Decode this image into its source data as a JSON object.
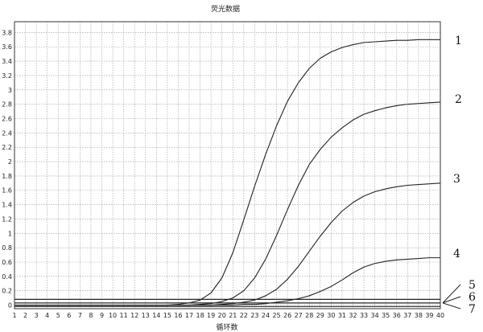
{
  "chart_data": {
    "type": "line",
    "title": "荧光数据",
    "xlabel": "循环数",
    "ylabel": "",
    "xlim": [
      1,
      40
    ],
    "ylim": [
      -0.05,
      3.95
    ],
    "x_ticks": [
      "1",
      "2",
      "3",
      "4",
      "5",
      "6",
      "7",
      "8",
      "9",
      "10",
      "11",
      "12",
      "13",
      "14",
      "15",
      "16",
      "17",
      "18",
      "19",
      "20",
      "21",
      "22",
      "23",
      "24",
      "25",
      "26",
      "27",
      "28",
      "29",
      "30",
      "31",
      "32",
      "33",
      "34",
      "35",
      "36",
      "37",
      "38",
      "39",
      "40"
    ],
    "y_ticks": [
      0,
      0.2,
      0.4,
      0.6,
      0.8,
      1,
      1.2,
      1.4,
      1.6,
      1.8,
      2,
      2.2,
      2.4,
      2.6,
      2.8,
      3,
      3.2,
      3.4,
      3.6,
      3.8
    ],
    "y_tick_labels": [
      "0",
      "0.2",
      "0.4",
      "0.6",
      "0.8",
      "1",
      "1.2",
      "1.4",
      "1.6",
      "1.8",
      "2",
      "2.2",
      "2.4",
      "2.6",
      "2.8",
      "3",
      "3.2",
      "3.4",
      "3.6",
      "3.8"
    ],
    "grid": true,
    "x": [
      1,
      2,
      3,
      4,
      5,
      6,
      7,
      8,
      9,
      10,
      11,
      12,
      13,
      14,
      15,
      16,
      17,
      18,
      19,
      20,
      21,
      22,
      23,
      24,
      25,
      26,
      27,
      28,
      29,
      30,
      31,
      32,
      33,
      34,
      35,
      36,
      37,
      38,
      39,
      40
    ],
    "series": [
      {
        "name": "1",
        "values": [
          0,
          0,
          0,
          0,
          0,
          0,
          0,
          0,
          0,
          0,
          0,
          0,
          0,
          0,
          0,
          0.01,
          0.03,
          0.07,
          0.17,
          0.38,
          0.73,
          1.19,
          1.66,
          2.1,
          2.5,
          2.84,
          3.1,
          3.3,
          3.44,
          3.53,
          3.59,
          3.63,
          3.66,
          3.67,
          3.68,
          3.69,
          3.69,
          3.7,
          3.7,
          3.7
        ]
      },
      {
        "name": "2",
        "values": [
          0,
          0,
          0,
          0,
          0,
          0,
          0,
          0,
          0,
          0,
          0,
          0,
          0,
          0,
          0,
          0,
          0,
          0.01,
          0.02,
          0.05,
          0.1,
          0.2,
          0.38,
          0.64,
          0.97,
          1.33,
          1.67,
          1.96,
          2.17,
          2.34,
          2.47,
          2.58,
          2.66,
          2.71,
          2.75,
          2.78,
          2.8,
          2.81,
          2.82,
          2.83
        ]
      },
      {
        "name": "3",
        "values": [
          0,
          0,
          0,
          0,
          0,
          0,
          0,
          0,
          0,
          0,
          0,
          0,
          0,
          0,
          0,
          0,
          0,
          0,
          0,
          0.01,
          0.02,
          0.04,
          0.07,
          0.13,
          0.22,
          0.36,
          0.54,
          0.75,
          0.96,
          1.15,
          1.31,
          1.43,
          1.52,
          1.58,
          1.62,
          1.65,
          1.67,
          1.68,
          1.69,
          1.7
        ]
      },
      {
        "name": "4",
        "values": [
          0,
          0,
          0,
          0,
          0,
          0,
          0,
          0,
          0,
          0,
          0,
          0,
          0,
          0,
          0,
          0,
          0,
          0,
          0,
          0,
          0,
          0.01,
          0.01,
          0.02,
          0.04,
          0.06,
          0.09,
          0.13,
          0.19,
          0.26,
          0.35,
          0.45,
          0.53,
          0.58,
          0.61,
          0.63,
          0.64,
          0.65,
          0.66,
          0.66
        ]
      },
      {
        "name": "5",
        "values": [
          0.08,
          0.08,
          0.08,
          0.08,
          0.08,
          0.08,
          0.08,
          0.08,
          0.08,
          0.08,
          0.08,
          0.08,
          0.08,
          0.08,
          0.08,
          0.08,
          0.08,
          0.08,
          0.08,
          0.08,
          0.08,
          0.08,
          0.08,
          0.08,
          0.08,
          0.08,
          0.08,
          0.08,
          0.08,
          0.08,
          0.08,
          0.08,
          0.08,
          0.08,
          0.08,
          0.08,
          0.08,
          0.08,
          0.08,
          0.08
        ]
      },
      {
        "name": "6",
        "values": [
          0.03,
          0.03,
          0.03,
          0.03,
          0.03,
          0.03,
          0.03,
          0.03,
          0.03,
          0.03,
          0.03,
          0.03,
          0.03,
          0.03,
          0.03,
          0.03,
          0.03,
          0.03,
          0.03,
          0.03,
          0.03,
          0.03,
          0.03,
          0.03,
          0.03,
          0.03,
          0.03,
          0.03,
          0.03,
          0.03,
          0.03,
          0.03,
          0.03,
          0.03,
          0.03,
          0.03,
          0.03,
          0.03,
          0.03,
          0.03
        ]
      },
      {
        "name": "7",
        "values": [
          -0.02,
          -0.02,
          -0.02,
          -0.02,
          -0.02,
          -0.02,
          -0.02,
          -0.02,
          -0.02,
          -0.02,
          -0.02,
          -0.02,
          -0.02,
          -0.02,
          -0.02,
          -0.02,
          -0.02,
          -0.02,
          -0.02,
          -0.02,
          -0.02,
          -0.02,
          -0.02,
          -0.02,
          -0.02,
          -0.02,
          -0.02,
          -0.02,
          -0.02,
          -0.02,
          -0.02,
          -0.02,
          -0.02,
          -0.02,
          -0.02,
          -0.02,
          -0.02,
          -0.02,
          -0.02,
          -0.02
        ]
      }
    ],
    "curve_labels": [
      "1",
      "2",
      "3",
      "4",
      "5",
      "6",
      "7"
    ],
    "line_color": "#222222",
    "grid_color": "#9a9a9a"
  }
}
